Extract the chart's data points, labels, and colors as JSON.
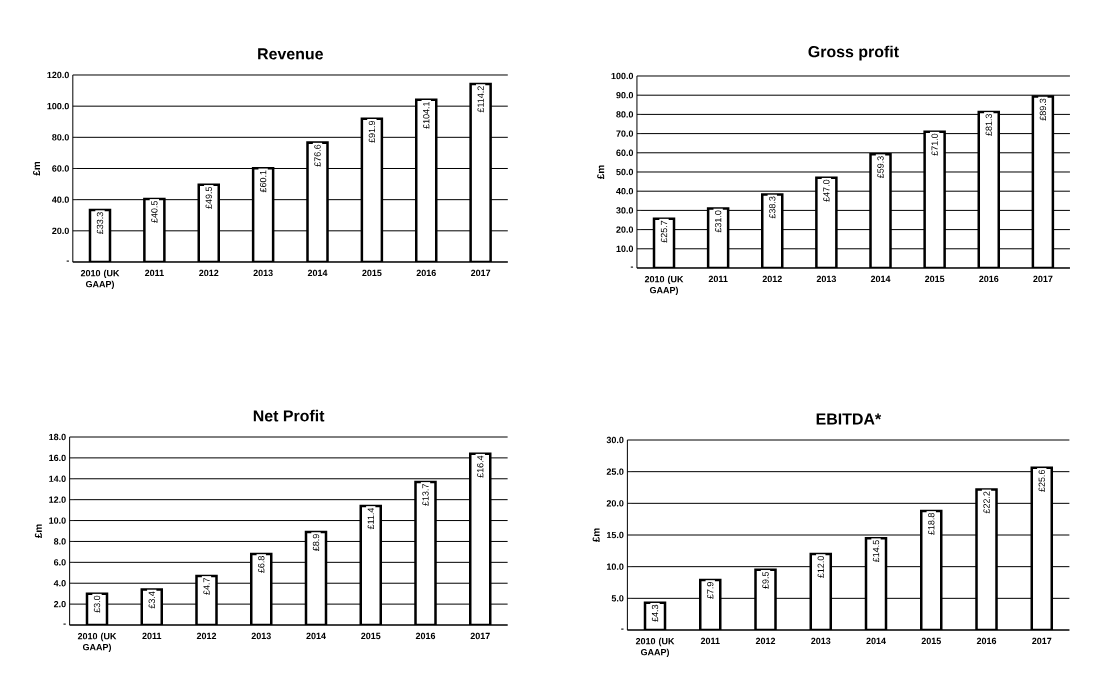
{
  "chart_data": [
    {
      "type": "bar",
      "title": "Revenue",
      "ylabel": "£m",
      "categories": [
        "2010 (UK GAAP)",
        "2011",
        "2012",
        "2013",
        "2014",
        "2015",
        "2016",
        "2017"
      ],
      "values": [
        33.3,
        40.5,
        49.5,
        60.1,
        76.6,
        91.9,
        104.1,
        114.2
      ],
      "value_labels": [
        "£33.3",
        "£40.5",
        "£49.5",
        "£60.1",
        "£76.6",
        "£91.9",
        "£104.1",
        "£114.2"
      ],
      "color": "#ffffff",
      "ylim": [
        0,
        120
      ],
      "yticks": [
        {
          "value": 0,
          "label": "-"
        },
        {
          "value": 20,
          "label": "20.0"
        },
        {
          "value": 40,
          "label": "40.0"
        },
        {
          "value": 60,
          "label": "60.0"
        },
        {
          "value": 80,
          "label": "80.0"
        },
        {
          "value": 100,
          "label": "100.0"
        },
        {
          "value": 120,
          "label": "120.0"
        }
      ],
      "grid": "y"
    },
    {
      "type": "bar",
      "title": "Gross profit",
      "ylabel": "£m",
      "categories": [
        "2010 (UK GAAP)",
        "2011",
        "2012",
        "2013",
        "2014",
        "2015",
        "2016",
        "2017"
      ],
      "values": [
        25.7,
        31.0,
        38.3,
        47.0,
        59.3,
        71.0,
        81.3,
        89.3
      ],
      "value_labels": [
        "£25.7",
        "£31.0",
        "£38.3",
        "£47.0",
        "£59.3",
        "£71.0",
        "£81.3",
        "£89.3"
      ],
      "color": "#ffffff",
      "ylim": [
        0,
        100
      ],
      "yticks": [
        {
          "value": 0,
          "label": "-"
        },
        {
          "value": 10,
          "label": "10.0"
        },
        {
          "value": 20,
          "label": "20.0"
        },
        {
          "value": 30,
          "label": "30.0"
        },
        {
          "value": 40,
          "label": "40.0"
        },
        {
          "value": 50,
          "label": "50.0"
        },
        {
          "value": 60,
          "label": "60.0"
        },
        {
          "value": 70,
          "label": "70.0"
        },
        {
          "value": 80,
          "label": "80.0"
        },
        {
          "value": 90,
          "label": "90.0"
        },
        {
          "value": 100,
          "label": "100.0"
        }
      ],
      "grid": "y"
    },
    {
      "type": "bar",
      "title": "Net Profit",
      "ylabel": "£m",
      "categories": [
        "2010 (UK GAAP)",
        "2011",
        "2012",
        "2013",
        "2014",
        "2015",
        "2016",
        "2017"
      ],
      "values": [
        3.0,
        3.4,
        4.7,
        6.8,
        8.9,
        11.4,
        13.7,
        16.4
      ],
      "value_labels": [
        "£3.0",
        "£3.4",
        "£4.7",
        "£6.8",
        "£8.9",
        "£11.4",
        "£13.7",
        "£16.4"
      ],
      "color": "#ffffff",
      "ylim": [
        0,
        18
      ],
      "yticks": [
        {
          "value": 0,
          "label": "-"
        },
        {
          "value": 2,
          "label": "2.0"
        },
        {
          "value": 4,
          "label": "4.0"
        },
        {
          "value": 6,
          "label": "6.0"
        },
        {
          "value": 8,
          "label": "8.0"
        },
        {
          "value": 10,
          "label": "10.0"
        },
        {
          "value": 12,
          "label": "12.0"
        },
        {
          "value": 14,
          "label": "14.0"
        },
        {
          "value": 16,
          "label": "16.0"
        },
        {
          "value": 18,
          "label": "18.0"
        }
      ],
      "grid": "y"
    },
    {
      "type": "bar",
      "title": "EBITDA*",
      "ylabel": "£m",
      "categories": [
        "2010 (UK GAAP)",
        "2011",
        "2012",
        "2013",
        "2014",
        "2015",
        "2016",
        "2017"
      ],
      "values": [
        4.3,
        7.9,
        9.5,
        12.0,
        14.5,
        18.8,
        22.2,
        25.6
      ],
      "value_labels": [
        "£4.3",
        "£7.9",
        "£9.5",
        "£12.0",
        "£14.5",
        "£18.8",
        "£22.2",
        "£25.6"
      ],
      "color": "#ffffff",
      "ylim": [
        0,
        30
      ],
      "yticks": [
        {
          "value": 0,
          "label": "-"
        },
        {
          "value": 5,
          "label": "5.0"
        },
        {
          "value": 10,
          "label": "10.0"
        },
        {
          "value": 15,
          "label": "15.0"
        },
        {
          "value": 20,
          "label": "20.0"
        },
        {
          "value": 25,
          "label": "25.0"
        },
        {
          "value": 30,
          "label": "30.0"
        }
      ],
      "grid": "y"
    }
  ]
}
